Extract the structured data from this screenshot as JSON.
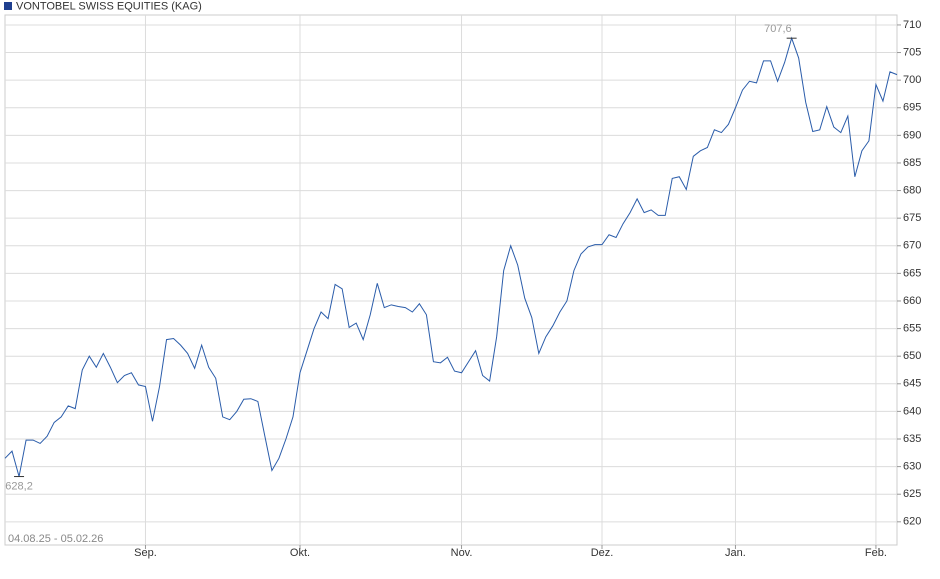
{
  "chart_data": {
    "type": "line",
    "series": [
      {
        "name": "VONTOBEL SWISS EQUITIES (KAG)",
        "color": "#2a5caa",
        "legend_color": "#1f3f8f",
        "values": [
          631.5,
          632.8,
          628.2,
          634.8,
          634.8,
          634.2,
          635.5,
          638,
          639,
          641,
          640.5,
          647.5,
          650,
          648,
          650.5,
          648,
          645.2,
          646.5,
          647,
          644.8,
          644.5,
          638.2,
          644.5,
          653,
          653.2,
          652,
          650.5,
          647.8,
          652,
          648,
          646,
          639,
          638.5,
          640,
          642.2,
          642.3,
          641.8,
          635.5,
          629.3,
          631.5,
          635,
          639,
          647,
          651,
          655,
          658,
          656.8,
          663,
          662.2,
          655.2,
          656,
          653,
          657.5,
          663.2,
          658.8,
          659.3,
          659,
          658.8,
          658,
          659.5,
          657.5,
          649,
          648.8,
          649.8,
          647.3,
          647,
          649,
          651,
          646.5,
          645.5,
          653.5,
          665.5,
          670,
          666.5,
          660.5,
          657,
          650.5,
          653.5,
          655.5,
          658,
          660,
          665.5,
          668.5,
          669.8,
          670.2,
          670.2,
          672,
          671.5,
          674,
          676,
          678.5,
          676,
          676.5,
          675.5,
          675.5,
          682.2,
          682.5,
          680.2,
          686.2,
          687.2,
          687.8,
          691,
          690.5,
          692,
          695,
          698.2,
          699.8,
          699.5,
          703.5,
          703.5,
          699.8,
          703.2,
          707.6,
          704,
          696,
          690.7,
          691,
          695.2,
          691.5,
          690.5,
          693.5,
          682.5,
          687.2,
          689,
          699.2,
          696.2,
          701.5,
          701
        ],
        "value_labels": [
          null,
          null,
          "628,2",
          null,
          null,
          null,
          null,
          null,
          null,
          null,
          null,
          null,
          null,
          null,
          null,
          null,
          null,
          null,
          null,
          null,
          null,
          null,
          null,
          null,
          null,
          null,
          null,
          null,
          null,
          null,
          null,
          null,
          null,
          null,
          null,
          null,
          null,
          null,
          null,
          null,
          null,
          null,
          null,
          null,
          null,
          null,
          null,
          null,
          null,
          null,
          null,
          null,
          null,
          null,
          null,
          null,
          null,
          null,
          null,
          null,
          null,
          null,
          null,
          null,
          null,
          null,
          null,
          null,
          null,
          null,
          null,
          null,
          null,
          null,
          null,
          null,
          null,
          null,
          null,
          null,
          null,
          null,
          null,
          null,
          null,
          null,
          null,
          null,
          null,
          null,
          null,
          null,
          null,
          null,
          null,
          null,
          null,
          null,
          null,
          null,
          null,
          null,
          null,
          null,
          null,
          null,
          null,
          null,
          null,
          null,
          null,
          null,
          "707,6",
          null,
          null,
          null,
          null,
          null,
          null,
          null,
          null,
          null,
          null,
          null,
          null,
          null,
          null,
          null
        ]
      }
    ],
    "categories": [
      null,
      null,
      null,
      null,
      null,
      null,
      null,
      null,
      null,
      null,
      null,
      null,
      null,
      null,
      null,
      null,
      null,
      null,
      null,
      null,
      "Sep.",
      null,
      null,
      null,
      null,
      null,
      null,
      null,
      null,
      null,
      null,
      null,
      null,
      null,
      null,
      null,
      null,
      null,
      null,
      null,
      null,
      null,
      "Okt.",
      null,
      null,
      null,
      null,
      null,
      null,
      null,
      null,
      null,
      null,
      null,
      null,
      null,
      null,
      null,
      null,
      null,
      null,
      null,
      null,
      null,
      null,
      "Nov.",
      null,
      null,
      null,
      null,
      null,
      null,
      null,
      null,
      null,
      null,
      null,
      null,
      null,
      null,
      null,
      null,
      null,
      null,
      null,
      "Dez.",
      null,
      null,
      null,
      null,
      null,
      null,
      null,
      null,
      null,
      null,
      null,
      null,
      null,
      null,
      null,
      null,
      null,
      null,
      "Jan.",
      null,
      null,
      null,
      null,
      null,
      null,
      null,
      null,
      null,
      null,
      null,
      null,
      null,
      null,
      null,
      null,
      null,
      null,
      null,
      "Feb.",
      null,
      null,
      null
    ],
    "date_range": "04.08.25 - 05.02.26",
    "ylim": [
      615.8,
      711.8
    ],
    "yticks": [
      620,
      625,
      630,
      635,
      640,
      645,
      650,
      655,
      660,
      665,
      670,
      675,
      680,
      685,
      690,
      695,
      700,
      705,
      710
    ],
    "grid": true
  }
}
